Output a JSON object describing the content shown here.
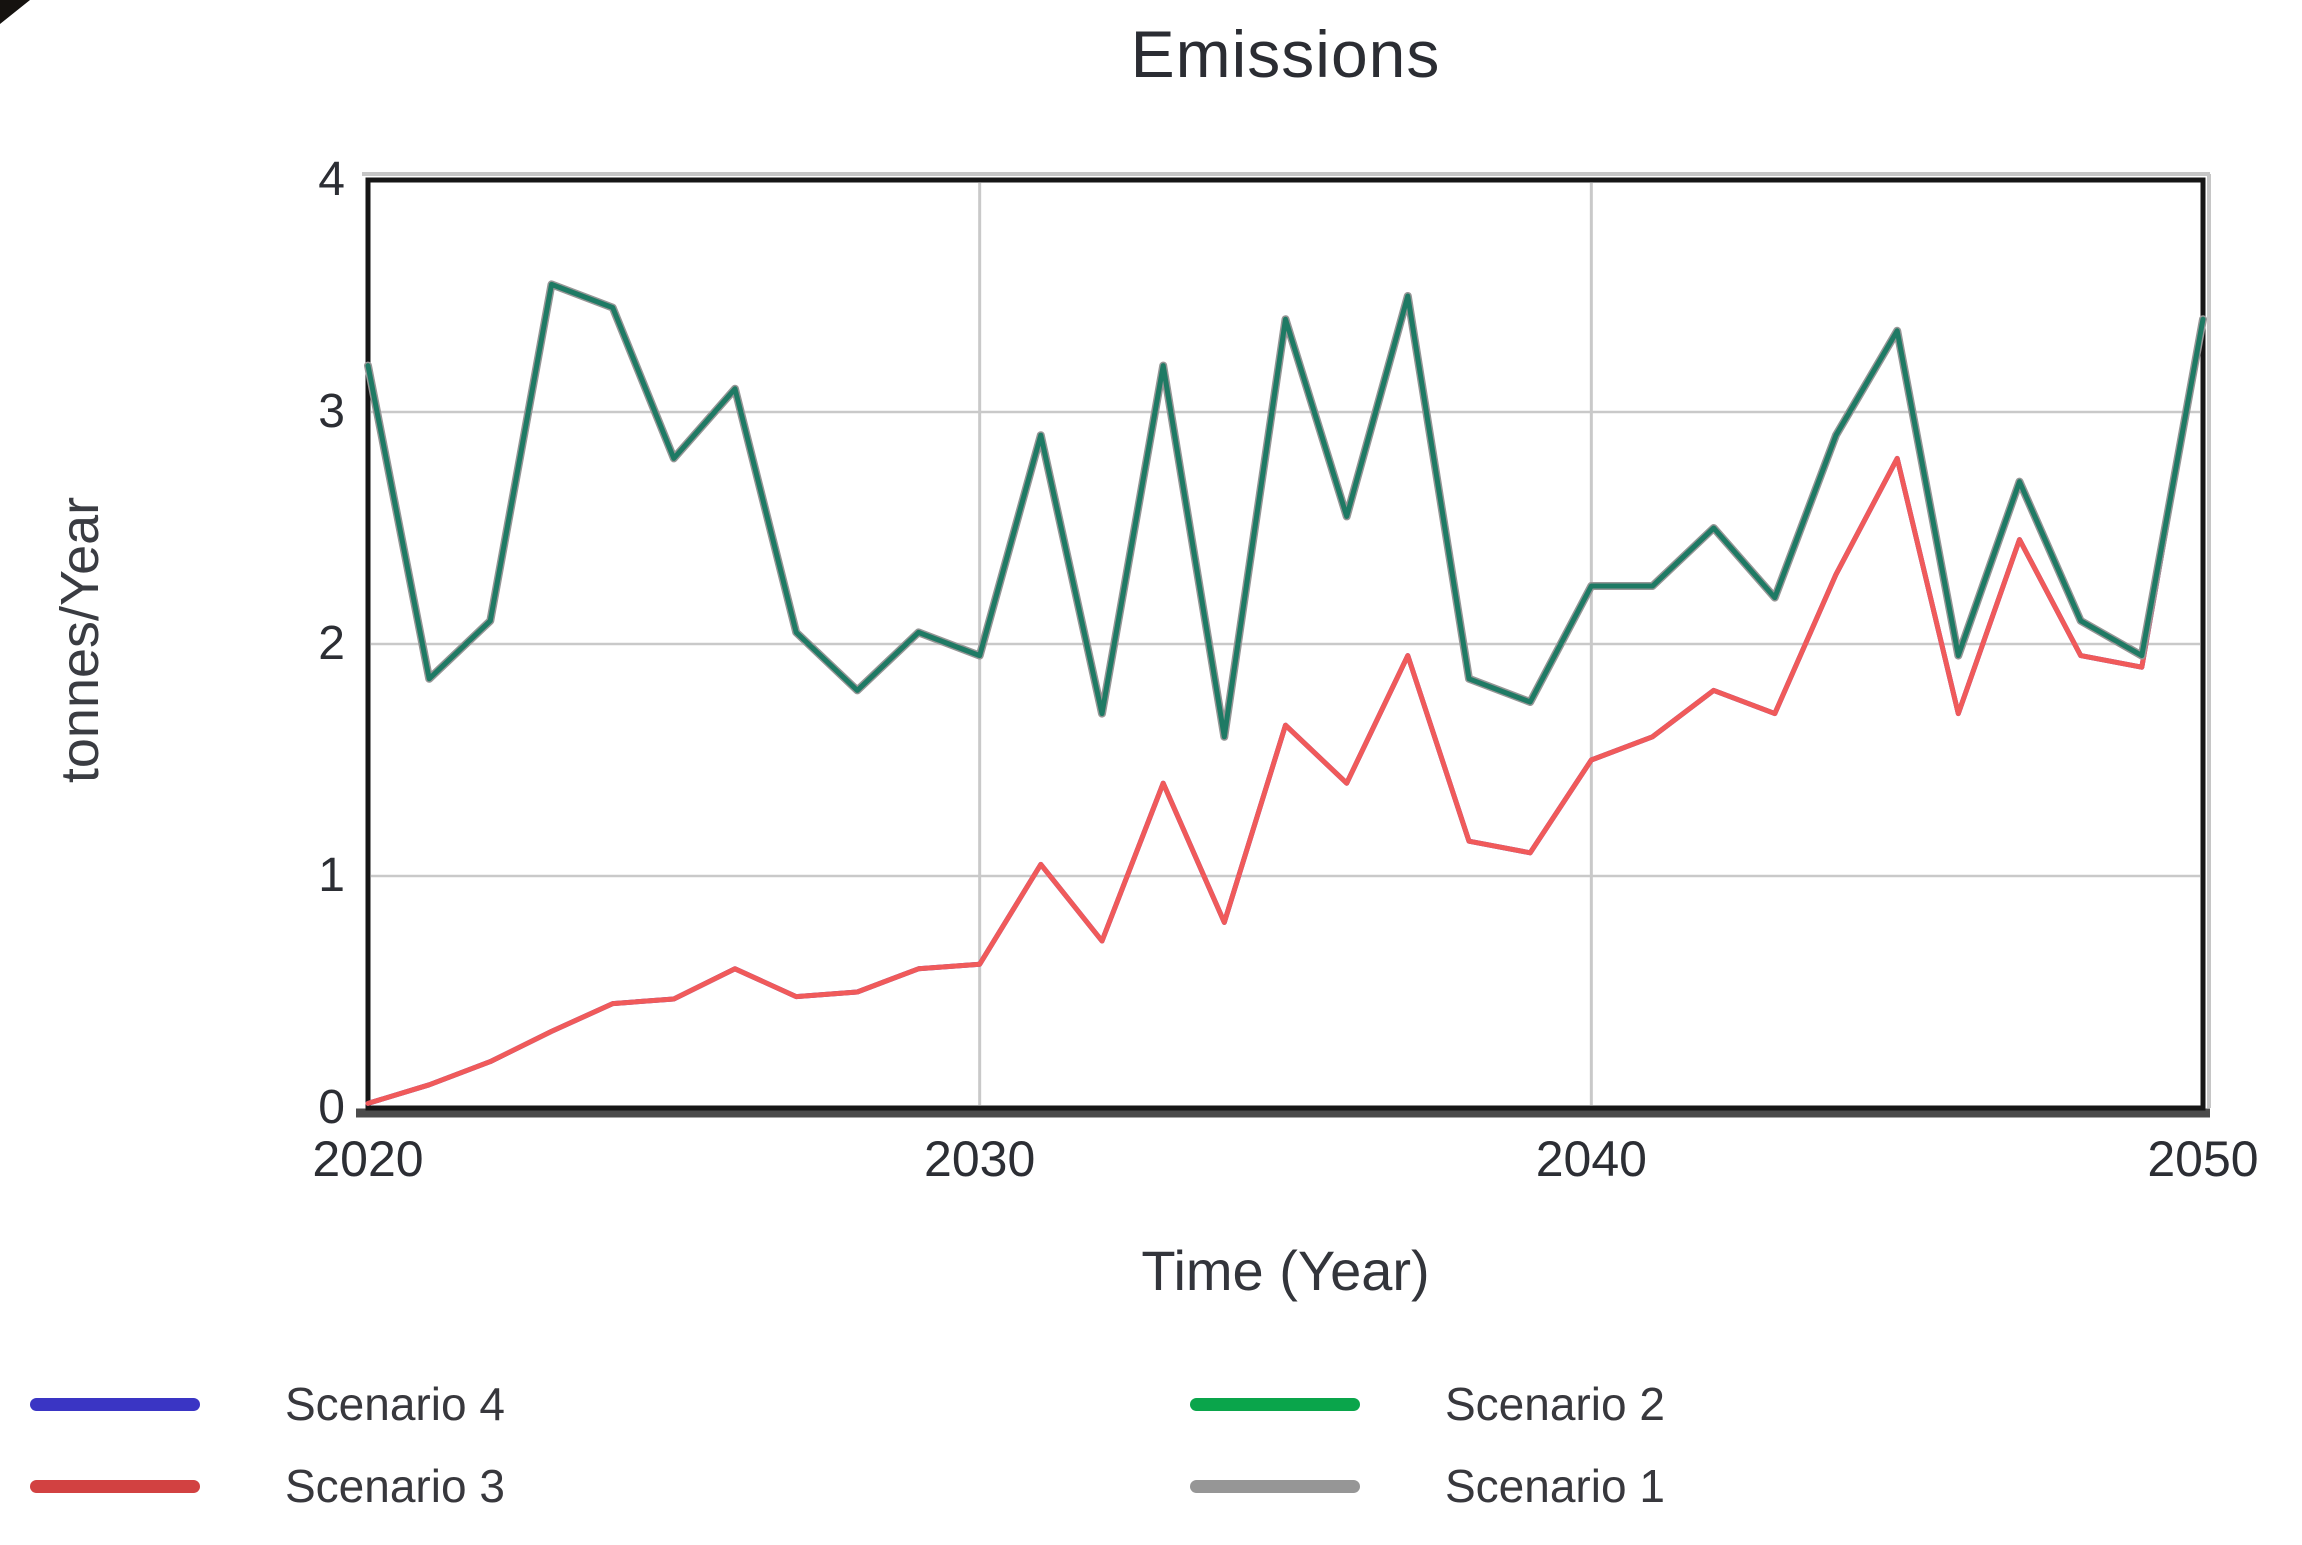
{
  "page": {
    "background": "#ffffff"
  },
  "chart_data": {
    "type": "line",
    "title": "Emissions",
    "xlabel": "Time (Year)",
    "ylabel": "tonnes/Year",
    "xlim": [
      2020,
      2050
    ],
    "ylim": [
      0,
      4
    ],
    "x_ticks": [
      2020,
      2030,
      2040,
      2050
    ],
    "y_ticks": [
      0,
      1,
      2,
      3,
      4
    ],
    "grid": {
      "vertical_at": [
        2030,
        2040
      ],
      "horizontal_at": [
        1,
        2,
        3
      ]
    },
    "frame_color": "#161616",
    "baseline_color": "#4b4b4b",
    "grid_color": "#c9c9c9",
    "years": [
      2020,
      2021,
      2022,
      2023,
      2024,
      2025,
      2026,
      2027,
      2028,
      2029,
      2030,
      2031,
      2032,
      2033,
      2034,
      2035,
      2036,
      2037,
      2038,
      2039,
      2040,
      2041,
      2042,
      2043,
      2044,
      2045,
      2046,
      2047,
      2048,
      2049,
      2050
    ],
    "legend": {
      "position": "below-chart",
      "columns": [
        [
          "Scenario 4",
          "Scenario 3"
        ],
        [
          "Scenario 2",
          "Scenario 1"
        ]
      ]
    },
    "series": [
      {
        "name": "Scenario 4",
        "line_color": "#3a35c4",
        "legend_color": "#3a35c4",
        "visibility": "hidden behind Scenario 3 line",
        "values": [
          0.02,
          0.1,
          0.2,
          0.33,
          0.45,
          0.47,
          0.6,
          0.48,
          0.5,
          0.6,
          0.62,
          1.05,
          0.72,
          1.4,
          0.8,
          1.65,
          1.4,
          1.95,
          1.15,
          1.1,
          1.5,
          1.6,
          1.8,
          1.7,
          2.3,
          2.8,
          1.7,
          2.45,
          1.95,
          1.9,
          3.4
        ]
      },
      {
        "name": "Scenario 3",
        "line_color": "#f05a5a",
        "legend_color": "#d24141",
        "visibility": "visible",
        "values": [
          0.02,
          0.1,
          0.2,
          0.33,
          0.45,
          0.47,
          0.6,
          0.48,
          0.5,
          0.6,
          0.62,
          1.05,
          0.72,
          1.4,
          0.8,
          1.65,
          1.4,
          1.95,
          1.15,
          1.1,
          1.5,
          1.6,
          1.8,
          1.7,
          2.3,
          2.8,
          1.7,
          2.45,
          1.95,
          1.9,
          3.4
        ]
      },
      {
        "name": "Scenario 2",
        "line_color": "#1e7a64",
        "legend_color": "#0aa54b",
        "visibility": "visible",
        "values": [
          3.2,
          1.85,
          2.1,
          3.55,
          3.45,
          2.8,
          3.1,
          2.05,
          1.8,
          2.05,
          1.95,
          2.9,
          1.7,
          3.2,
          1.6,
          3.4,
          2.55,
          3.5,
          1.85,
          1.75,
          2.25,
          2.25,
          2.5,
          2.2,
          2.9,
          3.35,
          1.95,
          2.7,
          2.1,
          1.95,
          3.4
        ]
      },
      {
        "name": "Scenario 1",
        "line_color": "#969696",
        "legend_color": "#969696",
        "visibility": "coincides with Scenario 2; peeks out along steep segments near 2020 and 2049-2050",
        "values": [
          3.2,
          1.85,
          2.1,
          3.55,
          3.45,
          2.8,
          3.1,
          2.05,
          1.8,
          2.05,
          1.95,
          2.9,
          1.7,
          3.2,
          1.6,
          3.4,
          2.55,
          3.5,
          1.85,
          1.75,
          2.25,
          2.25,
          2.5,
          2.2,
          2.9,
          3.35,
          1.95,
          2.7,
          2.1,
          1.95,
          3.4
        ]
      }
    ]
  }
}
